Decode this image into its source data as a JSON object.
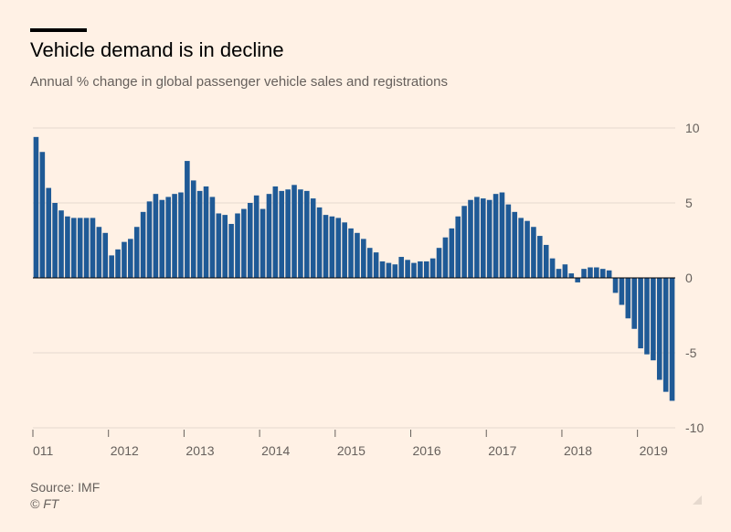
{
  "header": {
    "title": "Vehicle demand is in decline",
    "subtitle": "Annual % change in global passenger vehicle sales and registrations"
  },
  "footer": {
    "source": "Source: IMF",
    "copyright": "© FT"
  },
  "colors": {
    "background": "#fff1e5",
    "bar": "#1f5a96",
    "grid": "#e6d9ce",
    "axis_text": "#66605c"
  },
  "chart_data": {
    "type": "bar",
    "title": "Vehicle demand is in decline",
    "subtitle": "Annual % change in global passenger vehicle sales and registrations",
    "xlabel": "",
    "ylabel": "",
    "ylim": [
      -10,
      10
    ],
    "y_ticks": [
      "10",
      "5",
      "0",
      "-5",
      "-10"
    ],
    "y_tick_values": [
      10,
      5,
      0,
      -5,
      -10
    ],
    "y_axis_position": "right",
    "grid": true,
    "x_tick_labels": [
      "011",
      "2012",
      "2013",
      "2014",
      "2015",
      "2016",
      "2017",
      "2018",
      "2019"
    ],
    "x_tick_bar_index": [
      0,
      12,
      24,
      36,
      48,
      60,
      72,
      84,
      96
    ],
    "series": [
      {
        "values": [
          9.4,
          8.4,
          6.0,
          5.0,
          4.5,
          4.1,
          4.0,
          4.0,
          4.0,
          4.0,
          3.4,
          3.0,
          1.5,
          1.9,
          2.4,
          2.6,
          3.4,
          4.4,
          5.1,
          5.6,
          5.2,
          5.4,
          5.6,
          5.7,
          7.8,
          6.5,
          5.8,
          6.1,
          5.4,
          4.3,
          4.2,
          3.6,
          4.3,
          4.6,
          5.0,
          5.5,
          4.6,
          5.6,
          6.1,
          5.8,
          5.9,
          6.2,
          5.9,
          5.8,
          5.3,
          4.7,
          4.2,
          4.1,
          4.0,
          3.7,
          3.3,
          3.0,
          2.6,
          2.0,
          1.7,
          1.1,
          1.0,
          0.9,
          1.4,
          1.2,
          1.0,
          1.1,
          1.1,
          1.3,
          2.0,
          2.7,
          3.3,
          4.1,
          4.8,
          5.2,
          5.4,
          5.3,
          5.2,
          5.6,
          5.7,
          4.9,
          4.4,
          4.0,
          3.8,
          3.4,
          2.8,
          2.2,
          1.3,
          0.6,
          0.9,
          0.3,
          -0.3,
          0.6,
          0.7,
          0.7,
          0.6,
          0.5,
          -1.0,
          -1.8,
          -2.7,
          -3.4,
          -4.7,
          -5.1,
          -5.5,
          -6.8,
          -7.6,
          -8.2
        ]
      }
    ]
  }
}
